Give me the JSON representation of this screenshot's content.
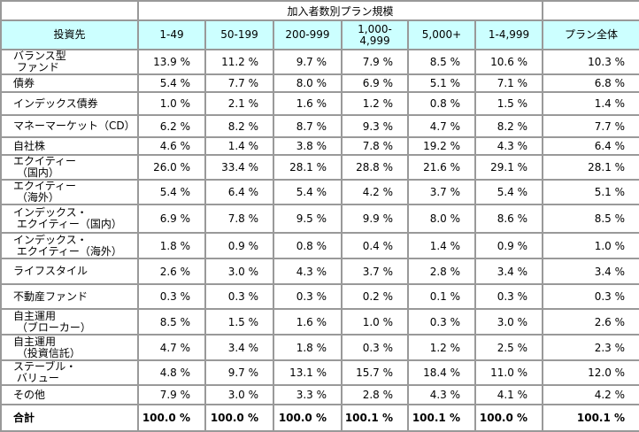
{
  "table": {
    "span_title": "加入者数別プラン規模",
    "corner_header": "投資先",
    "columns": [
      "1-49",
      "50-199",
      "200-999",
      "1,000-\n4,999",
      "5,000+",
      "1-4,999",
      "プラン全体"
    ],
    "value_unit": "%"
  },
  "colors": {
    "header_bg": "#ccffff",
    "border": "#999999",
    "text": "#000000",
    "background": "#ffffff"
  },
  "chart_data": {
    "type": "table",
    "title": "加入者数別プラン規模",
    "row_header": "投資先",
    "columns": [
      "1-49",
      "50-199",
      "200-999",
      "1,000-4,999",
      "5,000+",
      "1-4,999",
      "プラン全体"
    ],
    "unit": "%",
    "value_format": "one_decimal_percent",
    "rows": [
      {
        "label": "バランス型ファンド",
        "label_display": "バランス型\n ファンド",
        "values": [
          13.9,
          11.2,
          9.7,
          7.9,
          8.5,
          10.6,
          10.3
        ]
      },
      {
        "label": "債券",
        "label_display": "債券",
        "values": [
          5.4,
          7.7,
          8.0,
          6.9,
          5.1,
          7.1,
          6.8
        ]
      },
      {
        "label": "インデックス債券",
        "label_display": "インデックス債券",
        "values": [
          1.0,
          2.1,
          1.6,
          1.2,
          0.8,
          1.5,
          1.4
        ]
      },
      {
        "label": "マネーマーケット（CD）",
        "label_display": "マネーマーケット（CD）",
        "values": [
          6.2,
          8.2,
          8.7,
          9.3,
          4.7,
          8.2,
          7.7
        ]
      },
      {
        "label": "自社株",
        "label_display": "自社株",
        "values": [
          4.6,
          1.4,
          3.8,
          7.8,
          19.2,
          4.3,
          6.4
        ]
      },
      {
        "label": "エクイティー（国内）",
        "label_display": "エクイティー\n （国内）",
        "values": [
          26.0,
          33.4,
          28.1,
          28.8,
          21.6,
          29.1,
          28.1
        ]
      },
      {
        "label": "エクイティー（海外）",
        "label_display": "エクイティー\n （海外）",
        "values": [
          5.4,
          6.4,
          5.4,
          4.2,
          3.7,
          5.4,
          5.1
        ]
      },
      {
        "label": "インデックス・エクイティー（国内）",
        "label_display": "インデックス・\n エクイティー（国内）",
        "values": [
          6.9,
          7.8,
          9.5,
          9.9,
          8.0,
          8.6,
          8.5
        ]
      },
      {
        "label": "インデックス・エクイティー（海外）",
        "label_display": "インデックス・\n エクイティー（海外）",
        "values": [
          1.8,
          0.9,
          0.8,
          0.4,
          1.4,
          0.9,
          1.0
        ]
      },
      {
        "label": "ライフスタイル",
        "label_display": "ライフスタイル",
        "values": [
          2.6,
          3.0,
          4.3,
          3.7,
          2.8,
          3.4,
          3.4
        ]
      },
      {
        "label": "不動産ファンド",
        "label_display": "不動産ファンド",
        "values": [
          0.3,
          0.3,
          0.3,
          0.2,
          0.1,
          0.3,
          0.3
        ]
      },
      {
        "label": "自主運用（ブローカー）",
        "label_display": "自主運用\n （ブローカー）",
        "values": [
          8.5,
          1.5,
          1.6,
          1.0,
          0.3,
          3.0,
          2.6
        ]
      },
      {
        "label": "自主運用（投資信託）",
        "label_display": "自主運用\n （投資信託）",
        "values": [
          4.7,
          3.4,
          1.8,
          0.3,
          1.2,
          2.5,
          2.3
        ]
      },
      {
        "label": "ステーブル・バリュー",
        "label_display": "ステーブル・\n バリュー",
        "values": [
          4.8,
          9.7,
          13.1,
          15.7,
          18.4,
          11.0,
          12.0
        ]
      },
      {
        "label": "その他",
        "label_display": "その他",
        "values": [
          7.9,
          3.0,
          3.3,
          2.8,
          4.3,
          4.1,
          4.2
        ]
      },
      {
        "label": "合計",
        "label_display": "合計",
        "values": [
          100.0,
          100.0,
          100.0,
          100.1,
          100.1,
          100.0,
          100.1
        ],
        "is_total": true
      }
    ]
  }
}
